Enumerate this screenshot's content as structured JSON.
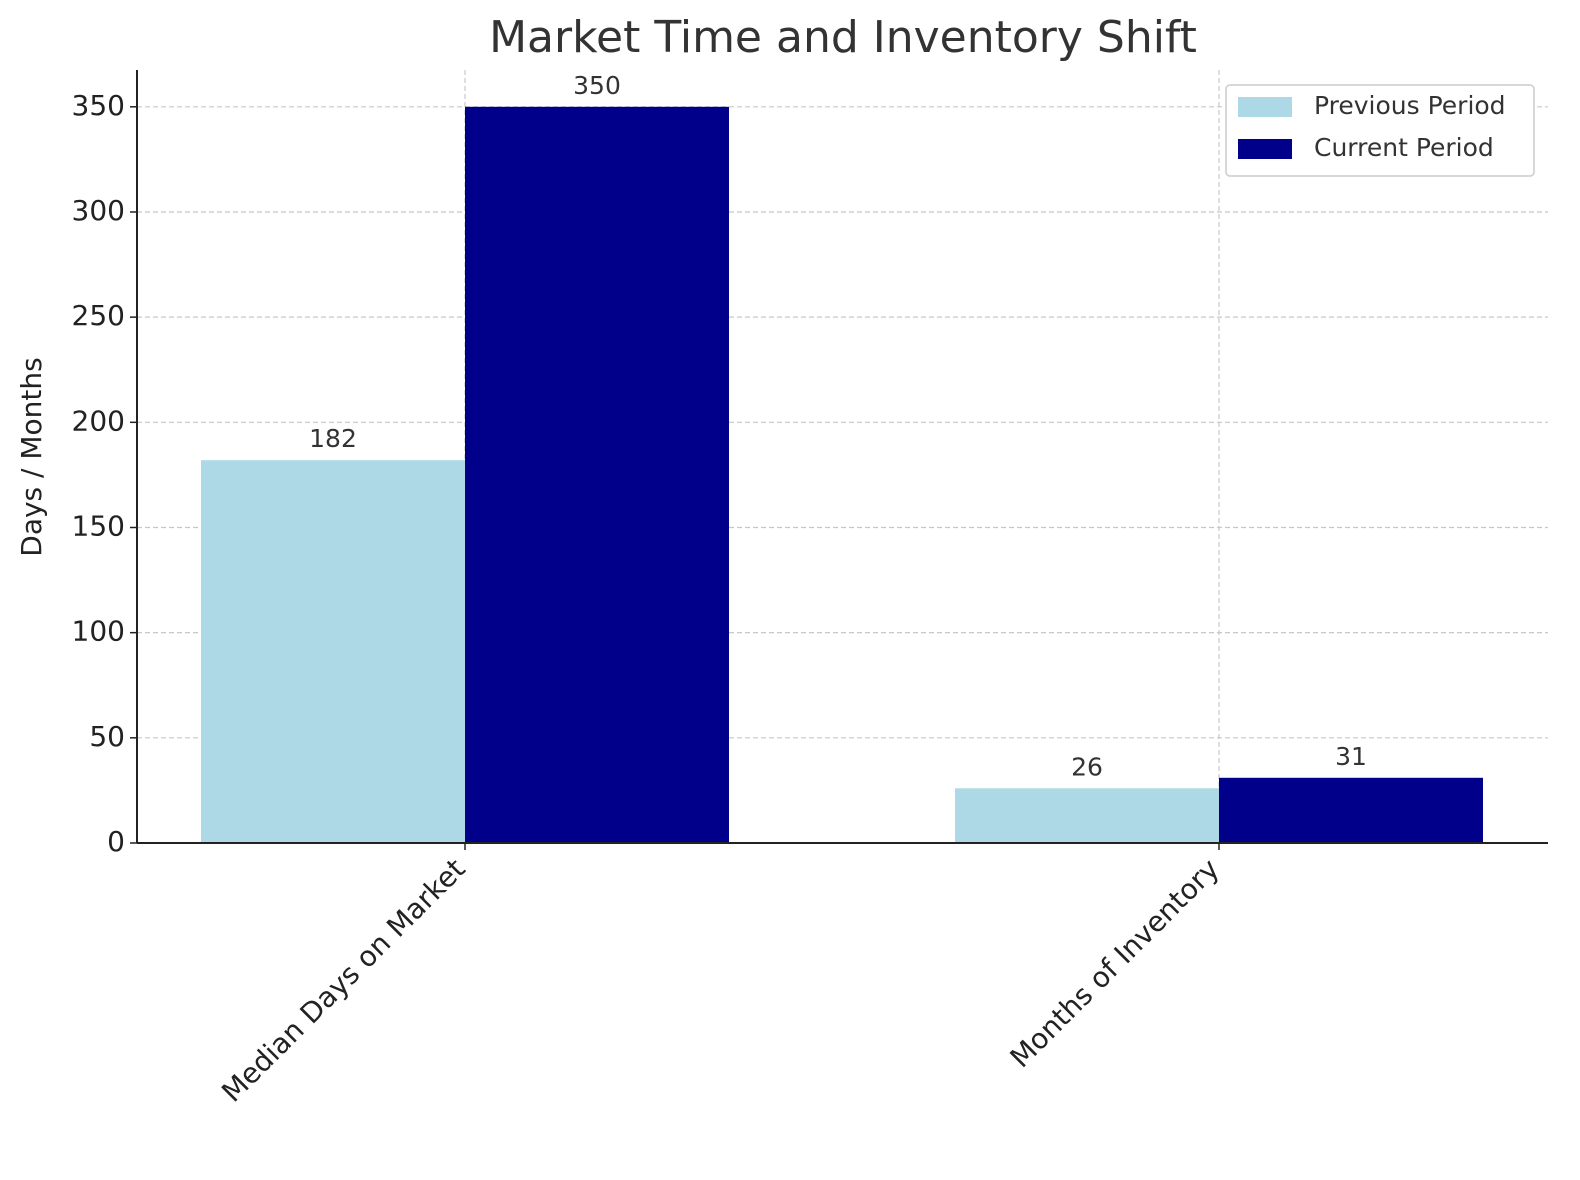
{
  "chart_data": {
    "type": "bar",
    "title": "Market Time and Inventory Shift",
    "y_label": "Days / Months",
    "categories": [
      "Median Days on Market",
      "Months of Inventory"
    ],
    "series": [
      {
        "name": "Previous Period",
        "color": "#add8e6",
        "values": [
          182,
          26
        ]
      },
      {
        "name": "Current Period",
        "color": "#00008b",
        "values": [
          350,
          31
        ]
      }
    ],
    "ylim": [
      0,
      367.5
    ],
    "yticks": [
      0,
      50,
      100,
      150,
      200,
      250,
      300,
      350
    ],
    "grid": true,
    "legend": "upper right"
  }
}
